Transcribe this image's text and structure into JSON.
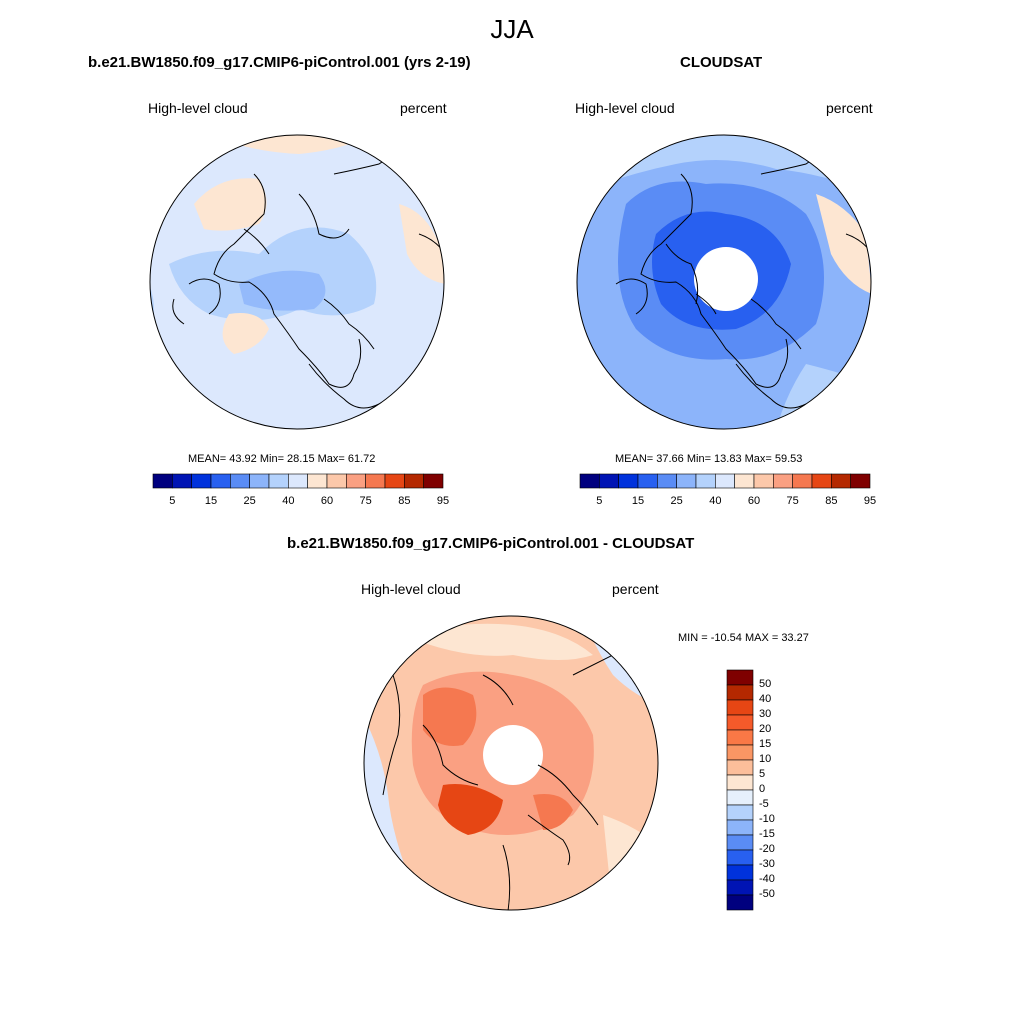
{
  "figure": {
    "season": "JJA"
  },
  "panels": {
    "model": {
      "title": "b.e21.BW1850.f09_g17.CMIP6-piControl.001 (yrs 2-19)",
      "left_label": "High-level cloud",
      "right_label": "percent",
      "stats": "MEAN=  43.92  Min=  28.15  Max=  61.72",
      "mean": 43.92,
      "min": 28.15,
      "max": 61.72
    },
    "obs": {
      "title": "CLOUDSAT",
      "left_label": "High-level cloud",
      "right_label": "percent",
      "stats": "MEAN=  37.66  Min=  13.83  Max=  59.53",
      "mean": 37.66,
      "min": 13.83,
      "max": 59.53,
      "missing_polar_cap": true
    },
    "diff": {
      "title": "b.e21.BW1850.f09_g17.CMIP6-piControl.001 - CLOUDSAT",
      "left_label": "High-level cloud",
      "right_label": "percent",
      "stats": "MIN = -10.54 MAX =  33.27",
      "min": -10.54,
      "max": 33.27,
      "missing_polar_cap": true
    }
  },
  "colorbars": {
    "field": {
      "colors": [
        "#00007f",
        "#0014b4",
        "#0032dc",
        "#2860f0",
        "#5a8cf5",
        "#8cb4fa",
        "#b4d2fc",
        "#dce8fd",
        "#fde6d2",
        "#fcc8aa",
        "#faa082",
        "#f57850",
        "#e64614",
        "#b42800",
        "#7f0000"
      ],
      "tick_labels": [
        "5",
        "15",
        "25",
        "40",
        "60",
        "75",
        "85",
        "95"
      ]
    },
    "diff": {
      "colors": [
        "#7f0000",
        "#b42800",
        "#e64614",
        "#f55a2a",
        "#fa7846",
        "#fa9664",
        "#fcbe9a",
        "#fde6d2",
        "#e6f0fc",
        "#b4d2fc",
        "#8cb4fa",
        "#5a8cf5",
        "#2860f0",
        "#0032dc",
        "#0014b4",
        "#00007f"
      ],
      "tick_labels": [
        "50",
        "40",
        "30",
        "20",
        "15",
        "10",
        "5",
        "0",
        "-5",
        "-10",
        "-15",
        "-20",
        "-30",
        "-40",
        "-50"
      ]
    }
  },
  "map_colors": {
    "ocean_light": "#dce8fd",
    "light_blue": "#b4d2fc",
    "mid_blue": "#8cb4fa",
    "blue": "#5a8cf5",
    "strong_blue": "#2860f0",
    "peach": "#fde6d2",
    "light_orange": "#fcc8aa",
    "orange": "#faa082",
    "deep_orange": "#f57850",
    "red_orange": "#e64614"
  }
}
